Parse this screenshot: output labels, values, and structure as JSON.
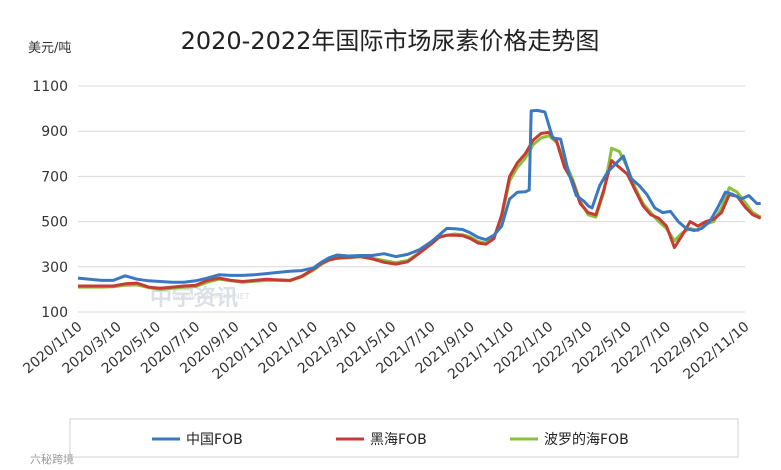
{
  "chart_data": {
    "type": "line",
    "title": "2020-2022年国际市场尿素价格走势图",
    "ylabel": "美元/吨",
    "xlabel": "",
    "ylim": [
      100,
      1100
    ],
    "yticks": [
      100,
      300,
      500,
      700,
      900,
      1100
    ],
    "grid": true,
    "legend_position": "bottom",
    "x_tick_labels": [
      "2020/1/10",
      "2020/3/10",
      "2020/5/10",
      "2020/7/10",
      "2020/9/10",
      "2020/11/10",
      "2021/1/10",
      "2021/3/10",
      "2021/5/10",
      "2021/7/10",
      "2021/9/10",
      "2021/11/10",
      "2022/1/10",
      "2022/3/10",
      "2022/5/10",
      "2022/7/10",
      "2022/9/10",
      "2022/11/10"
    ],
    "series": [
      {
        "name": "中国FOB",
        "color": "#3a78c2",
        "points": [
          [
            0,
            250
          ],
          [
            0.3,
            245
          ],
          [
            0.6,
            240
          ],
          [
            0.9,
            240
          ],
          [
            1.2,
            260
          ],
          [
            1.5,
            245
          ],
          [
            1.8,
            238
          ],
          [
            2.1,
            235
          ],
          [
            2.4,
            232
          ],
          [
            2.7,
            232
          ],
          [
            3.0,
            238
          ],
          [
            3.3,
            250
          ],
          [
            3.6,
            265
          ],
          [
            3.9,
            262
          ],
          [
            4.2,
            262
          ],
          [
            4.5,
            265
          ],
          [
            4.8,
            270
          ],
          [
            5.1,
            275
          ],
          [
            5.4,
            280
          ],
          [
            5.7,
            283
          ],
          [
            6.0,
            295
          ],
          [
            6.2,
            320
          ],
          [
            6.4,
            340
          ],
          [
            6.6,
            352
          ],
          [
            6.9,
            348
          ],
          [
            7.2,
            350
          ],
          [
            7.5,
            350
          ],
          [
            7.8,
            358
          ],
          [
            8.1,
            345
          ],
          [
            8.4,
            355
          ],
          [
            8.7,
            375
          ],
          [
            9.0,
            410
          ],
          [
            9.2,
            440
          ],
          [
            9.4,
            470
          ],
          [
            9.6,
            468
          ],
          [
            9.8,
            465
          ],
          [
            10.0,
            450
          ],
          [
            10.2,
            430
          ],
          [
            10.4,
            420
          ],
          [
            10.6,
            440
          ],
          [
            10.8,
            480
          ],
          [
            11.0,
            600
          ],
          [
            11.2,
            630
          ],
          [
            11.4,
            632
          ],
          [
            11.5,
            640
          ],
          [
            11.55,
            990
          ],
          [
            11.7,
            992
          ],
          [
            11.9,
            985
          ],
          [
            12.1,
            870
          ],
          [
            12.3,
            865
          ],
          [
            12.5,
            720
          ],
          [
            12.7,
            615
          ],
          [
            12.9,
            590
          ],
          [
            13.0,
            570
          ],
          [
            13.1,
            560
          ],
          [
            13.3,
            660
          ],
          [
            13.5,
            720
          ],
          [
            13.7,
            755
          ],
          [
            13.9,
            790
          ],
          [
            14.1,
            690
          ],
          [
            14.3,
            660
          ],
          [
            14.5,
            620
          ],
          [
            14.7,
            560
          ],
          [
            14.9,
            540
          ],
          [
            15.1,
            545
          ],
          [
            15.3,
            500
          ],
          [
            15.5,
            470
          ],
          [
            15.7,
            460
          ],
          [
            15.9,
            470
          ],
          [
            16.1,
            500
          ],
          [
            16.3,
            560
          ],
          [
            16.5,
            630
          ],
          [
            16.7,
            620
          ],
          [
            16.9,
            600
          ],
          [
            17.1,
            615
          ],
          [
            17.3,
            580
          ],
          [
            17.4,
            580
          ]
        ]
      },
      {
        "name": "黑海FOB",
        "color": "#c63c34",
        "points": [
          [
            0,
            215
          ],
          [
            0.3,
            215
          ],
          [
            0.6,
            215
          ],
          [
            0.9,
            215
          ],
          [
            1.2,
            225
          ],
          [
            1.5,
            228
          ],
          [
            1.8,
            210
          ],
          [
            2.1,
            205
          ],
          [
            2.4,
            210
          ],
          [
            2.7,
            215
          ],
          [
            3.0,
            218
          ],
          [
            3.3,
            240
          ],
          [
            3.6,
            250
          ],
          [
            3.9,
            240
          ],
          [
            4.2,
            235
          ],
          [
            4.5,
            240
          ],
          [
            4.8,
            245
          ],
          [
            5.1,
            242
          ],
          [
            5.4,
            240
          ],
          [
            5.7,
            258
          ],
          [
            6.0,
            290
          ],
          [
            6.2,
            315
          ],
          [
            6.4,
            330
          ],
          [
            6.6,
            338
          ],
          [
            6.9,
            342
          ],
          [
            7.2,
            345
          ],
          [
            7.5,
            335
          ],
          [
            7.8,
            320
          ],
          [
            8.1,
            312
          ],
          [
            8.4,
            322
          ],
          [
            8.7,
            360
          ],
          [
            9.0,
            400
          ],
          [
            9.2,
            430
          ],
          [
            9.4,
            440
          ],
          [
            9.6,
            440
          ],
          [
            9.8,
            438
          ],
          [
            10.0,
            425
          ],
          [
            10.2,
            405
          ],
          [
            10.4,
            400
          ],
          [
            10.6,
            425
          ],
          [
            10.8,
            530
          ],
          [
            11.0,
            700
          ],
          [
            11.2,
            760
          ],
          [
            11.4,
            800
          ],
          [
            11.6,
            860
          ],
          [
            11.8,
            890
          ],
          [
            12.0,
            895
          ],
          [
            12.2,
            855
          ],
          [
            12.4,
            740
          ],
          [
            12.6,
            680
          ],
          [
            12.8,
            580
          ],
          [
            13.0,
            540
          ],
          [
            13.2,
            530
          ],
          [
            13.4,
            640
          ],
          [
            13.6,
            770
          ],
          [
            13.8,
            740
          ],
          [
            14.0,
            710
          ],
          [
            14.2,
            640
          ],
          [
            14.4,
            570
          ],
          [
            14.6,
            530
          ],
          [
            14.8,
            515
          ],
          [
            15.0,
            480
          ],
          [
            15.2,
            385
          ],
          [
            15.4,
            440
          ],
          [
            15.6,
            500
          ],
          [
            15.8,
            480
          ],
          [
            16.0,
            500
          ],
          [
            16.2,
            510
          ],
          [
            16.4,
            540
          ],
          [
            16.6,
            620
          ],
          [
            16.8,
            612
          ],
          [
            17.0,
            565
          ],
          [
            17.2,
            530
          ],
          [
            17.4,
            515
          ]
        ]
      },
      {
        "name": "波罗的海FOB",
        "color": "#8bbf3c",
        "points": [
          [
            0,
            210
          ],
          [
            0.3,
            210
          ],
          [
            0.6,
            210
          ],
          [
            0.9,
            212
          ],
          [
            1.2,
            218
          ],
          [
            1.5,
            220
          ],
          [
            1.8,
            208
          ],
          [
            2.1,
            200
          ],
          [
            2.4,
            205
          ],
          [
            2.7,
            210
          ],
          [
            3.0,
            213
          ],
          [
            3.3,
            232
          ],
          [
            3.6,
            245
          ],
          [
            3.9,
            238
          ],
          [
            4.2,
            232
          ],
          [
            4.5,
            236
          ],
          [
            4.8,
            240
          ],
          [
            5.1,
            240
          ],
          [
            5.4,
            238
          ],
          [
            5.7,
            255
          ],
          [
            6.0,
            285
          ],
          [
            6.2,
            310
          ],
          [
            6.4,
            330
          ],
          [
            6.6,
            338
          ],
          [
            6.9,
            340
          ],
          [
            7.2,
            345
          ],
          [
            7.5,
            338
          ],
          [
            7.8,
            328
          ],
          [
            8.1,
            318
          ],
          [
            8.4,
            328
          ],
          [
            8.7,
            362
          ],
          [
            9.0,
            405
          ],
          [
            9.2,
            432
          ],
          [
            9.4,
            440
          ],
          [
            9.6,
            445
          ],
          [
            9.8,
            442
          ],
          [
            10.0,
            432
          ],
          [
            10.2,
            412
          ],
          [
            10.4,
            405
          ],
          [
            10.6,
            430
          ],
          [
            10.8,
            520
          ],
          [
            11.0,
            680
          ],
          [
            11.2,
            740
          ],
          [
            11.4,
            780
          ],
          [
            11.6,
            840
          ],
          [
            11.8,
            870
          ],
          [
            12.0,
            880
          ],
          [
            12.2,
            850
          ],
          [
            12.4,
            770
          ],
          [
            12.6,
            690
          ],
          [
            12.8,
            590
          ],
          [
            13.0,
            530
          ],
          [
            13.2,
            520
          ],
          [
            13.4,
            630
          ],
          [
            13.6,
            825
          ],
          [
            13.8,
            810
          ],
          [
            14.0,
            740
          ],
          [
            14.2,
            650
          ],
          [
            14.4,
            580
          ],
          [
            14.6,
            540
          ],
          [
            14.8,
            500
          ],
          [
            15.0,
            470
          ],
          [
            15.2,
            415
          ],
          [
            15.4,
            450
          ],
          [
            15.6,
            470
          ],
          [
            15.8,
            460
          ],
          [
            16.0,
            490
          ],
          [
            16.2,
            500
          ],
          [
            16.4,
            560
          ],
          [
            16.6,
            650
          ],
          [
            16.8,
            630
          ],
          [
            17.0,
            585
          ],
          [
            17.2,
            540
          ],
          [
            17.4,
            520
          ]
        ]
      }
    ]
  },
  "watermark": {
    "brand": "中宇资讯",
    "url": "WWW.CHEM99.NET"
  },
  "footer": {
    "source": "六秘跨境"
  }
}
